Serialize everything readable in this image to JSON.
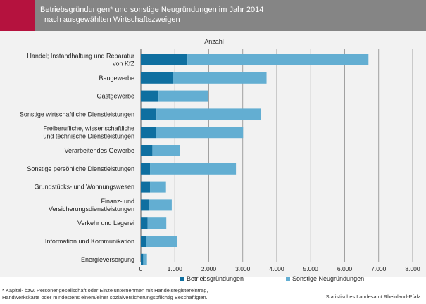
{
  "header": {
    "title_line1": "Betriebsgründungen* und sonstige Neugründungen im Jahr 2014",
    "title_line2": "nach ausgewählten Wirtschaftszweigen"
  },
  "colors": {
    "accent": "#b5123e",
    "header_bg": "#858585",
    "betrieb": "#0f6fa0",
    "sonstige": "#63aed2",
    "grid": "#8c8c8c"
  },
  "chart_data": {
    "type": "bar",
    "orientation": "horizontal",
    "stacked": true,
    "title": "",
    "xlabel": "Anzahl",
    "ylabel": "",
    "xlim": [
      0,
      8000
    ],
    "grid": true,
    "legend_position": "bottom-center",
    "x_ticks": [
      "0",
      "1.000",
      "2.000",
      "3.000",
      "4.000",
      "5.000",
      "6.000",
      "7.000",
      "8.000"
    ],
    "categories": [
      [
        "Handel; Instandhaltung und Reparatur",
        "von KfZ"
      ],
      [
        "Baugewerbe"
      ],
      [
        "Gastgewerbe"
      ],
      [
        "Sonstige wirtschaftliche Dienstleistungen"
      ],
      [
        "Freiberufliche, wissenschaftliche",
        "und technische Dienstleistungen"
      ],
      [
        "Verarbeitendes Gewerbe"
      ],
      [
        "Sonstige persönliche Dienstleistungen"
      ],
      [
        "Grundstücks- und Wohnungswesen"
      ],
      [
        "Finanz- und",
        "Versicherungsdienstleistungen"
      ],
      [
        "Verkehr und Lagerei"
      ],
      [
        "Information und Kommunikation"
      ],
      [
        "Energieversorgung"
      ]
    ],
    "series": [
      {
        "name": "Betriebsgründungen",
        "values": [
          1370,
          940,
          520,
          460,
          450,
          340,
          270,
          270,
          230,
          200,
          150,
          70
        ]
      },
      {
        "name": "Sonstige Neugründungen",
        "values": [
          5330,
          2760,
          1450,
          3070,
          2560,
          800,
          2530,
          470,
          680,
          550,
          920,
          110
        ]
      }
    ]
  },
  "footnote": {
    "line1": "* Kapital- bzw. Personengesellschaft oder Einzelunternehmen mit  Handelsregistereintrag,",
    "line2": "Handwerkskarte oder mindestens einem/einer sozialversicherungspflichtig Beschäftigten."
  },
  "source": "Statistisches Landesamt Rheinland-Pfalz"
}
